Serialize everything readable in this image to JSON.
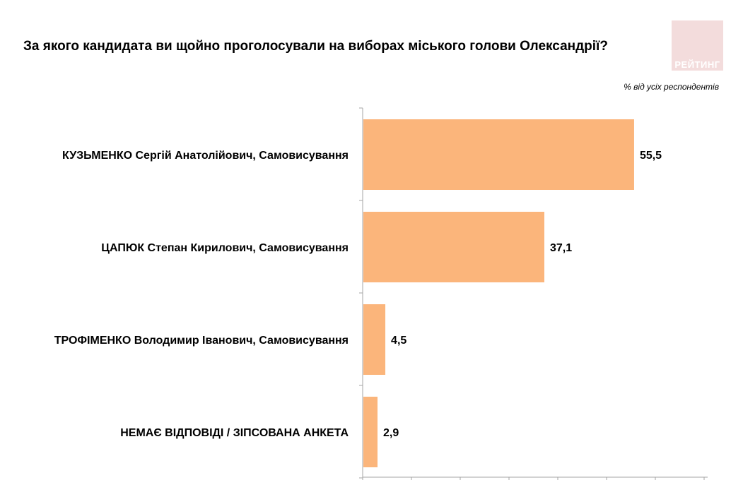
{
  "title": "За якого кандидата ви щойно проголосували на виборах міського голови Олександрії?",
  "subtitle": "% від усіх респондентів",
  "logo": {
    "text": "РЕЙТИНГ",
    "background": "#f3dcdc"
  },
  "colors": {
    "bar": "#fbb57b",
    "axis": "#a6a6a6"
  },
  "chart_data": {
    "type": "bar",
    "orientation": "horizontal",
    "categories": [
      "КУЗЬМЕНКО Сергій Анатолійович, Самовисування",
      "ЦАПЮК Степан Кирилович, Самовисування",
      "ТРОФІМЕНКО Володимир Іванович, Самовисування",
      "НЕМАЄ ВІДПОВІДІ / ЗІПСОВАНА АНКЕТА"
    ],
    "values": [
      55.5,
      37.1,
      4.5,
      2.9
    ],
    "value_labels": [
      "55,5",
      "37,1",
      "4,5",
      "2,9"
    ],
    "xlim": [
      0,
      70
    ],
    "grid": false,
    "legend": "none"
  }
}
